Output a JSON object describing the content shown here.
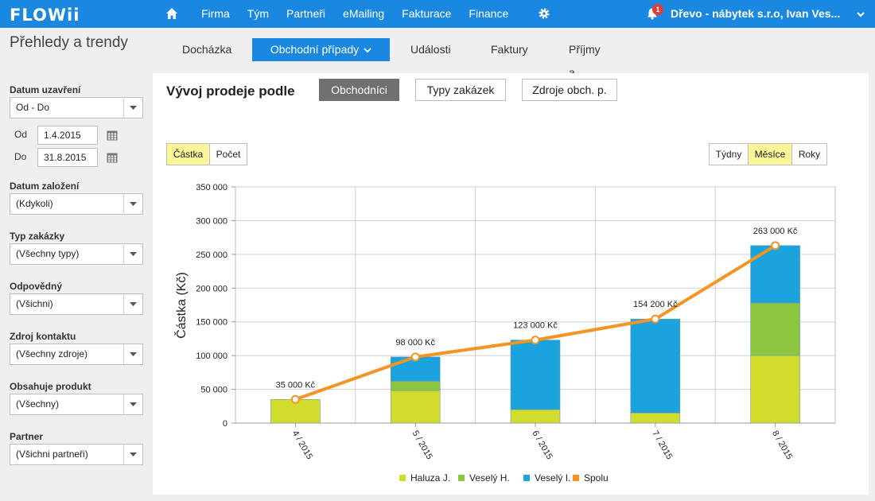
{
  "app": {
    "logo": "FLOWii",
    "nav": [
      "Firma",
      "Tým",
      "Partneři",
      "eMailing",
      "Fakturace",
      "Finance"
    ],
    "notifications": "1",
    "user": "Dřevo - nábytek s.r.o, Ivan Ves..."
  },
  "page": {
    "title": "Přehledy a trendy",
    "tabs": [
      "Docházka",
      "Obchodní případy",
      "Události",
      "Faktury",
      "Příjmy a výdaje"
    ],
    "active_tab": "Obchodní případy"
  },
  "filters": {
    "datum_uzavreni": {
      "label": "Datum uzavření",
      "value": "Od - Do",
      "od_label": "Od",
      "od": "1.4.2015",
      "do_label": "Do",
      "do": "31.8.2015"
    },
    "datum_zalozeni": {
      "label": "Datum založení",
      "value": "(Kdykoli)"
    },
    "typ_zakazky": {
      "label": "Typ zakázky",
      "value": "(Všechny typy)"
    },
    "odpovedny": {
      "label": "Odpovědný",
      "value": "(Všichni)"
    },
    "zdroj_kontaktu": {
      "label": "Zdroj kontaktu",
      "value": "(Všechny zdroje)"
    },
    "obsahuje_produkt": {
      "label": "Obsahuje produkt",
      "value": "(Všechny)"
    },
    "partner": {
      "label": "Partner",
      "value": "(Všichni partneři)"
    }
  },
  "main": {
    "heading": "Vývoj prodeje podle",
    "group_buttons": [
      "Obchodníci",
      "Typy zakázek",
      "Zdroje obch. p."
    ],
    "active_group": "Obchodníci",
    "metric_toggle": [
      "Částka",
      "Počet"
    ],
    "active_metric": "Částka",
    "period_toggle": [
      "Týdny",
      "Měsíce",
      "Roky"
    ],
    "active_period": "Měsíce"
  },
  "chart_data": {
    "type": "bar",
    "stacked": true,
    "ylabel": "Částka (Kč)",
    "ylim": [
      0,
      350000
    ],
    "yticks": [
      0,
      50000,
      100000,
      150000,
      200000,
      250000,
      300000,
      350000
    ],
    "ytick_labels": [
      "0",
      "50 000",
      "100 000",
      "150 000",
      "200 000",
      "250 000",
      "300 000",
      "350 000"
    ],
    "categories": [
      "4 / 2015",
      "5 / 2015",
      "6 / 2015",
      "7 / 2015",
      "8 / 2015"
    ],
    "series": [
      {
        "name": "Haluza J.",
        "values": [
          35000,
          48000,
          20000,
          15000,
          100000
        ],
        "color": "#d1dc2c"
      },
      {
        "name": "Veselý H.",
        "values": [
          0,
          14000,
          0,
          0,
          78000
        ],
        "color": "#8cc63e"
      },
      {
        "name": "Veselý I.",
        "values": [
          0,
          36000,
          103000,
          139200,
          85000
        ],
        "color": "#1aa3dd"
      }
    ],
    "total_line": {
      "name": "Spolu",
      "values": [
        35000,
        98000,
        123000,
        154200,
        263000
      ],
      "color": "#f39423"
    },
    "data_labels": [
      "35 000 Kč",
      "98 000 Kč",
      "123 000 Kč",
      "154 200 Kč",
      "263 000 Kč"
    ],
    "grid": true,
    "legend": "bottom"
  }
}
